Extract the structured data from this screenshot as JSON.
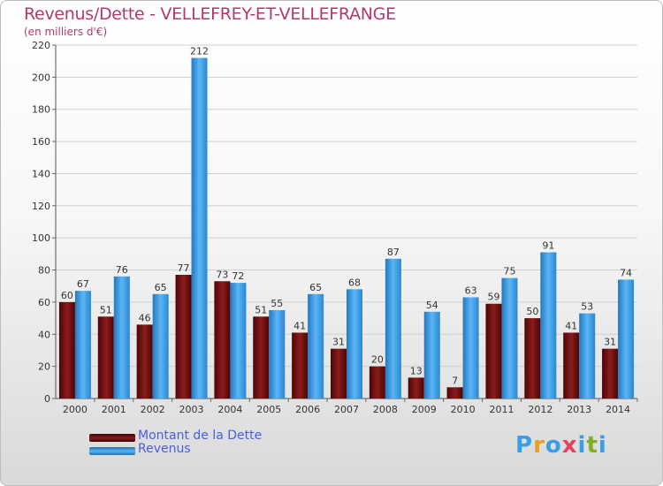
{
  "chart_data": {
    "type": "bar",
    "title": "Revenus/Dette - VELLEFREY-ET-VELLEFRANGE",
    "subtitle": "(en milliers d'€)",
    "categories": [
      "2000",
      "2001",
      "2002",
      "2003",
      "2004",
      "2005",
      "2006",
      "2007",
      "2008",
      "2009",
      "2010",
      "2011",
      "2012",
      "2013",
      "2014"
    ],
    "series": [
      {
        "name": "Montant de la Dette",
        "color": "#7a0c0c",
        "values": [
          60,
          51,
          46,
          77,
          73,
          51,
          41,
          31,
          20,
          13,
          7,
          59,
          50,
          41,
          31
        ]
      },
      {
        "name": "Revenus",
        "color": "#3a9ee6",
        "values": [
          67,
          76,
          65,
          212,
          72,
          55,
          65,
          68,
          87,
          54,
          63,
          75,
          91,
          53,
          74
        ]
      }
    ],
    "yticks": [
      0,
      20,
      40,
      60,
      80,
      100,
      120,
      140,
      160,
      180,
      200,
      220
    ],
    "ylim": [
      0,
      220
    ],
    "xlabel": "",
    "ylabel": "",
    "legend_position": "bottom-left"
  },
  "logo": {
    "letters": [
      "P",
      "r",
      "o",
      "x",
      "i",
      "t",
      "i"
    ],
    "colors": [
      "#3a9ee6",
      "#e8a020",
      "#3a9ee6",
      "#e84060",
      "#3a9ee6",
      "#80b020",
      "#3a9ee6"
    ]
  }
}
